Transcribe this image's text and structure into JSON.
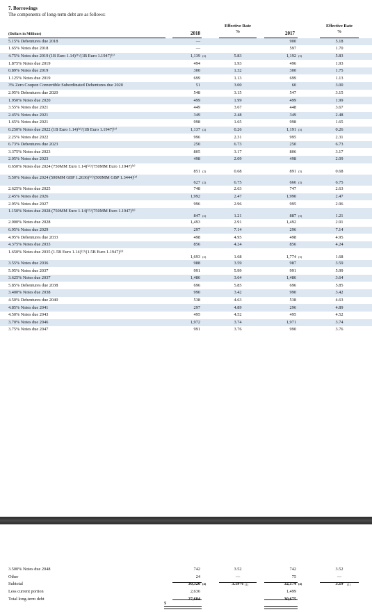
{
  "header": {
    "title": "7.  Borrowings",
    "subtitle": "The components of long-term debt are as follows:"
  },
  "columns": {
    "label": "(Dollars in Millions)",
    "y2018": "2018",
    "y2017": "2017",
    "rate1": "Effective Rate",
    "rate2": "%",
    "dollar": "$"
  },
  "rows": [
    {
      "label": "5.15% Debentures due 2018",
      "v18": "—",
      "f18": "",
      "r18": "",
      "v17": "900",
      "f17": "",
      "r17": "5.18"
    },
    {
      "label": "1.65% Notes due 2018",
      "v18": "—",
      "f18": "",
      "r18": "",
      "v17": "597",
      "f17": "",
      "r17": "1.70"
    },
    {
      "label": "4.75% Notes due 2019 (1B Euro 1.14)⁽²⁾/(1B Euro 1.1947)⁽³⁾",
      "v18": "1,139",
      "f18": "(2)",
      "r18": "5.83",
      "v17": "1,192",
      "f17": "(3)",
      "r17": "5.83"
    },
    {
      "label": "1.875% Notes due 2019",
      "v18": "494",
      "f18": "",
      "r18": "1.93",
      "v17": "496",
      "f17": "",
      "r17": "1.93"
    },
    {
      "label": "0.89% Notes due 2019",
      "v18": "300",
      "f18": "",
      "r18": "1.32",
      "v17": "300",
      "f17": "",
      "r17": "1.75"
    },
    {
      "label": "1.125% Notes due 2019",
      "v18": "699",
      "f18": "",
      "r18": "1.13",
      "v17": "699",
      "f17": "",
      "r17": "1.13"
    },
    {
      "label": "3% Zero Coupon Convertible Subordinated Debentures due 2020",
      "v18": "51",
      "f18": "",
      "r18": "3.00",
      "v17": "60",
      "f17": "",
      "r17": "3.00"
    },
    {
      "label": "2.95% Debentures due 2020",
      "v18": "548",
      "f18": "",
      "r18": "3.15",
      "v17": "547",
      "f17": "",
      "r17": "3.15"
    },
    {
      "label": "1.950% Notes due 2020",
      "v18": "499",
      "f18": "",
      "r18": "1.99",
      "v17": "499",
      "f17": "",
      "r17": "1.99"
    },
    {
      "label": "3.55% Notes due 2021",
      "v18": "449",
      "f18": "",
      "r18": "3.67",
      "v17": "448",
      "f17": "",
      "r17": "3.67"
    },
    {
      "label": "2.45% Notes due 2021",
      "v18": "349",
      "f18": "",
      "r18": "2.48",
      "v17": "349",
      "f17": "",
      "r17": "2.48"
    },
    {
      "label": "1.65% Notes due 2021",
      "v18": "998",
      "f18": "",
      "r18": "1.65",
      "v17": "998",
      "f17": "",
      "r17": "1.65"
    },
    {
      "label": "0.250% Notes due 2022 (1B Euro 1.14)⁽²⁾/(1B Euro 1.1947)⁽³⁾",
      "v18": "1,137",
      "f18": "(2)",
      "r18": "0.26",
      "v17": "1,191",
      "f17": "(3)",
      "r17": "0.26"
    },
    {
      "label": "2.25% Notes due 2022",
      "v18": "996",
      "f18": "",
      "r18": "2.31",
      "v17": "995",
      "f17": "",
      "r17": "2.31"
    },
    {
      "label": "6.73% Debentures due 2023",
      "v18": "250",
      "f18": "",
      "r18": "6.73",
      "v17": "250",
      "f17": "",
      "r17": "6.73"
    },
    {
      "label": "3.375% Notes due 2023",
      "v18": "805",
      "f18": "",
      "r18": "3.17",
      "v17": "806",
      "f17": "",
      "r17": "3.17"
    },
    {
      "label": "2.05% Notes due 2023",
      "v18": "498",
      "f18": "",
      "r18": "2.09",
      "v17": "498",
      "f17": "",
      "r17": "2.09"
    },
    {
      "label": "0.650% Notes due 2024 (750MM Euro 1.14)⁽²⁾/(750MM Euro 1.1947)⁽³⁾",
      "v18": "851",
      "f18": "(2)",
      "r18": "0.68",
      "v17": "891",
      "f17": "(3)",
      "r17": "0.68"
    },
    {
      "label": "5.50% Notes due 2024 (500MM GBP 1.2636)⁽²⁾/(500MM GBP 1.3444)⁽³⁾",
      "v18": "627",
      "f18": "(2)",
      "r18": "6.75",
      "v17": "666",
      "f17": "(3)",
      "r17": "6.75"
    },
    {
      "label": "2.625% Notes due 2025",
      "v18": "748",
      "f18": "",
      "r18": "2.63",
      "v17": "747",
      "f17": "",
      "r17": "2.63"
    },
    {
      "label": "2.45% Notes due 2026",
      "v18": "1,992",
      "f18": "",
      "r18": "2.47",
      "v17": "1,990",
      "f17": "",
      "r17": "2.47"
    },
    {
      "label": "2.95% Notes due 2027",
      "v18": "996",
      "f18": "",
      "r18": "2.96",
      "v17": "995",
      "f17": "",
      "r17": "2.96"
    },
    {
      "label": "1.150% Notes due 2028 (750MM Euro 1.14)⁽²⁾/(750MM Euro 1.1947)⁽³⁾",
      "v18": "847",
      "f18": "(2)",
      "r18": "1.21",
      "v17": "887",
      "f17": "(3)",
      "r17": "1.21"
    },
    {
      "label": "2.900% Notes due 2028",
      "v18": "1,493",
      "f18": "",
      "r18": "2.91",
      "v17": "1,492",
      "f17": "",
      "r17": "2.91"
    },
    {
      "label": "6.95% Notes due 2029",
      "v18": "297",
      "f18": "",
      "r18": "7.14",
      "v17": "296",
      "f17": "",
      "r17": "7.14"
    },
    {
      "label": "4.95% Debentures due 2033",
      "v18": "498",
      "f18": "",
      "r18": "4.95",
      "v17": "498",
      "f17": "",
      "r17": "4.95"
    },
    {
      "label": "4.375% Notes due 2033",
      "v18": "856",
      "f18": "",
      "r18": "4.24",
      "v17": "856",
      "f17": "",
      "r17": "4.24"
    },
    {
      "label": "1.650% Notes due 2035 (1.5B Euro 1.14)⁽²⁾/(1.5B Euro 1.1947)⁽³⁾",
      "v18": "1,693",
      "f18": "(2)",
      "r18": "1.68",
      "v17": "1,774",
      "f17": "(3)",
      "r17": "1.68"
    },
    {
      "label": "3.55% Notes due 2036",
      "v18": "988",
      "f18": "",
      "r18": "3.59",
      "v17": "987",
      "f17": "",
      "r17": "3.59"
    },
    {
      "label": "5.95% Notes due 2037",
      "v18": "991",
      "f18": "",
      "r18": "5.99",
      "v17": "991",
      "f17": "",
      "r17": "5.99"
    },
    {
      "label": "3.625% Notes due 2037",
      "v18": "1,486",
      "f18": "",
      "r18": "3.64",
      "v17": "1,486",
      "f17": "",
      "r17": "3.64"
    },
    {
      "label": "5.85% Debentures due 2038",
      "v18": "696",
      "f18": "",
      "r18": "5.85",
      "v17": "696",
      "f17": "",
      "r17": "5.85"
    },
    {
      "label": "3.400% Notes due 2038",
      "v18": "990",
      "f18": "",
      "r18": "3.42",
      "v17": "990",
      "f17": "",
      "r17": "3.42"
    },
    {
      "label": "4.50% Debentures due 2040",
      "v18": "538",
      "f18": "",
      "r18": "4.63",
      "v17": "538",
      "f17": "",
      "r17": "4.63"
    },
    {
      "label": "4.85% Notes due 2041",
      "v18": "297",
      "f18": "",
      "r18": "4.89",
      "v17": "296",
      "f17": "",
      "r17": "4.89"
    },
    {
      "label": "4.50% Notes due 2043",
      "v18": "495",
      "f18": "",
      "r18": "4.52",
      "v17": "495",
      "f17": "",
      "r17": "4.52"
    },
    {
      "label": "3.70% Notes due 2046",
      "v18": "1,972",
      "f18": "",
      "r18": "3.74",
      "v17": "1,971",
      "f17": "",
      "r17": "3.74"
    },
    {
      "label": "3.75% Notes due 2047",
      "v18": "991",
      "f18": "",
      "r18": "3.76",
      "v17": "990",
      "f17": "",
      "r17": "3.76"
    }
  ],
  "bottom_rows": [
    {
      "label": "3.500% Notes due 2048",
      "v18": "742",
      "f18": "",
      "r18": "3.52",
      "v17": "742",
      "f17": "",
      "r17": "3.52"
    },
    {
      "label": "Other",
      "v18": "24",
      "f18": "",
      "r18": "—",
      "v17": "75",
      "f17": "",
      "r17": "—"
    },
    {
      "label": "Subtotal",
      "v18": "30,320",
      "f18": "(4)",
      "r18": "3.19%",
      "r18f": "(1)",
      "v17": "32,174",
      "f17": "(4)",
      "r17": "3.19",
      "r17f": "(1)"
    },
    {
      "label": "Less current portion",
      "v18": "2,636",
      "f18": "",
      "r18": "",
      "v17": "1,499",
      "f17": "",
      "r17": ""
    },
    {
      "label": "Total long-term debt",
      "v18": "27,684",
      "f18": "",
      "r18": "",
      "v17": "30,675",
      "f17": ""
    }
  ]
}
